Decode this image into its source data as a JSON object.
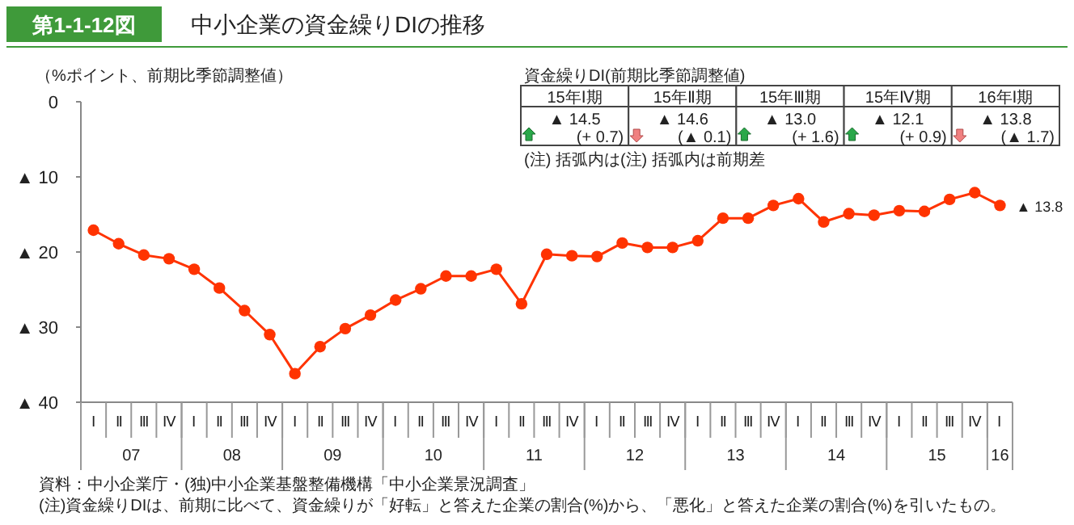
{
  "chart_data": {
    "type": "line",
    "title": "中小企業の資金繰りDIの推移",
    "subtitle": "第1-1-12図",
    "ylabel": "（%ポイント、前期比季節調整値）",
    "categories": [
      "Ⅰ",
      "Ⅱ",
      "Ⅲ",
      "Ⅳ",
      "Ⅰ",
      "Ⅱ",
      "Ⅲ",
      "Ⅳ",
      "Ⅰ",
      "Ⅱ",
      "Ⅲ",
      "Ⅳ",
      "Ⅰ",
      "Ⅱ",
      "Ⅲ",
      "Ⅳ",
      "Ⅰ",
      "Ⅱ",
      "Ⅲ",
      "Ⅳ",
      "Ⅰ",
      "Ⅱ",
      "Ⅲ",
      "Ⅳ",
      "Ⅰ",
      "Ⅱ",
      "Ⅲ",
      "Ⅳ",
      "Ⅰ",
      "Ⅱ",
      "Ⅲ",
      "Ⅳ",
      "Ⅰ",
      "Ⅱ",
      "Ⅲ",
      "Ⅳ",
      "Ⅰ"
    ],
    "series": [
      {
        "color": "#ff3300",
        "values": [
          -17.1,
          -18.9,
          -20.4,
          -20.9,
          -22.3,
          -24.8,
          -27.8,
          -31.0,
          -36.2,
          -32.6,
          -30.2,
          -28.4,
          -26.4,
          -24.9,
          -23.2,
          -23.2,
          -22.3,
          -26.9,
          -20.3,
          -20.5,
          -20.6,
          -18.8,
          -19.4,
          -19.4,
          -18.5,
          -15.5,
          -15.5,
          -13.8,
          -12.9,
          -16.0,
          -14.9,
          -15.1,
          -14.5,
          -14.6,
          -13.0,
          -12.1,
          -13.8
        ]
      }
    ],
    "ylim": [
      -40,
      0
    ],
    "yticks": [
      {
        "value": -40,
        "label": "▲ 40"
      },
      {
        "value": -30,
        "label": "▲ 30"
      },
      {
        "value": -20,
        "label": "▲ 20"
      },
      {
        "value": -10,
        "label": "▲ 10"
      },
      0
    ],
    "marker": "circle",
    "grid": false,
    "annotations": [
      "資金繰りDI(前期比季節調整値)",
      "15年Ⅰ期",
      "▲ 14.5",
      "(+ 0.7)",
      "15年Ⅱ期",
      "▲ 14.6",
      "(▲ 0.1)",
      "15年Ⅲ期",
      "▲ 13.0",
      "(+ 1.6)",
      "15年Ⅳ期",
      "▲ 12.1",
      "(+ 0.9)",
      "16年Ⅰ期",
      "▲ 13.8",
      "(▲ 1.7)",
      "(注) 括弧内は(注) 括弧内は前期差",
      "07",
      "08",
      "09",
      "10",
      "11",
      "12",
      "13",
      "14",
      "15",
      "16",
      "▲ 13.8",
      "資料：中小企業庁・(独)中小企業基盤整備機構「中小企業景況調査」",
      "(注)資金繰りDIは、前期に比べて、資金繰りが「好転」と答えた企業の割合(%)から、「悪化」と答えた企業の割合(%)を引いたもの。"
    ]
  }
}
